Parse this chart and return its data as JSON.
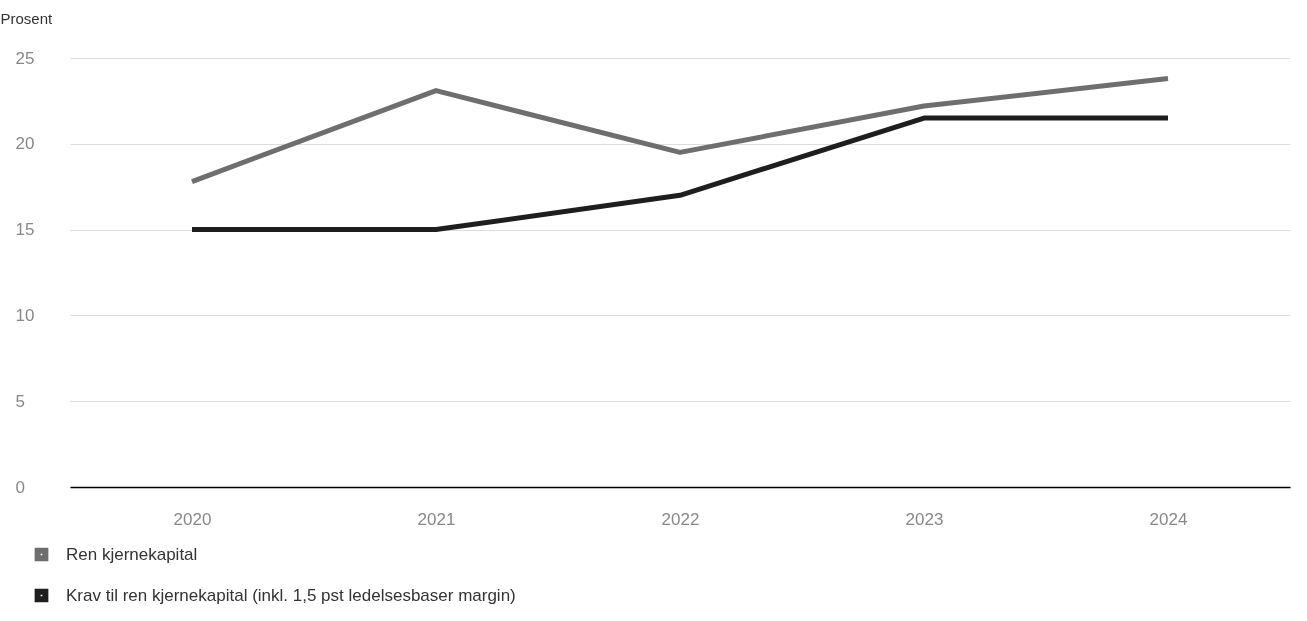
{
  "chart_data": {
    "type": "line",
    "ylabel": "Prosent",
    "categories": [
      "2020",
      "2021",
      "2022",
      "2023",
      "2024"
    ],
    "series": [
      {
        "name": "Ren kjernekapital",
        "color": "#6e6e6e",
        "values": [
          17.8,
          23.1,
          19.5,
          22.2,
          23.8
        ]
      },
      {
        "name": "Krav til ren kjernekapital (inkl. 1,5 pst ledelsesbaser margin)",
        "color": "#1e1e1e",
        "values": [
          15,
          15,
          17,
          21.5,
          21.5
        ]
      }
    ],
    "ylim": [
      0,
      25
    ],
    "yticks": [
      0,
      5,
      10,
      15,
      20,
      25
    ],
    "grid": "y",
    "legend": "bottom left",
    "marker": "none",
    "line_style": "solid"
  }
}
